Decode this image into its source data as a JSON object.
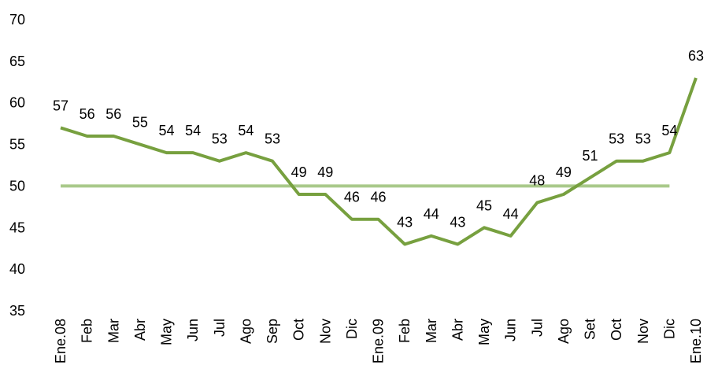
{
  "chart_data": {
    "type": "line",
    "categories": [
      "Ene.08",
      "Feb",
      "Mar",
      "Abr",
      "May",
      "Jun",
      "Jul",
      "Ago",
      "Sep",
      "Oct",
      "Nov",
      "Dic",
      "Ene.09",
      "Feb",
      "Mar",
      "Abr",
      "May",
      "Jun",
      "Jul",
      "Ago",
      "Set",
      "Oct",
      "Nov",
      "Dic",
      "Ene.10"
    ],
    "values": [
      57,
      56,
      56,
      55,
      54,
      54,
      53,
      54,
      53,
      49,
      49,
      46,
      46,
      43,
      44,
      43,
      45,
      44,
      48,
      49,
      51,
      53,
      53,
      54,
      63
    ],
    "color": "#77a03f",
    "reference": 50,
    "reference_color": "#a9c98a",
    "ylim": [
      35,
      70
    ],
    "yticks": [
      35,
      40,
      45,
      50,
      55,
      60,
      65,
      70
    ],
    "grid": false
  }
}
